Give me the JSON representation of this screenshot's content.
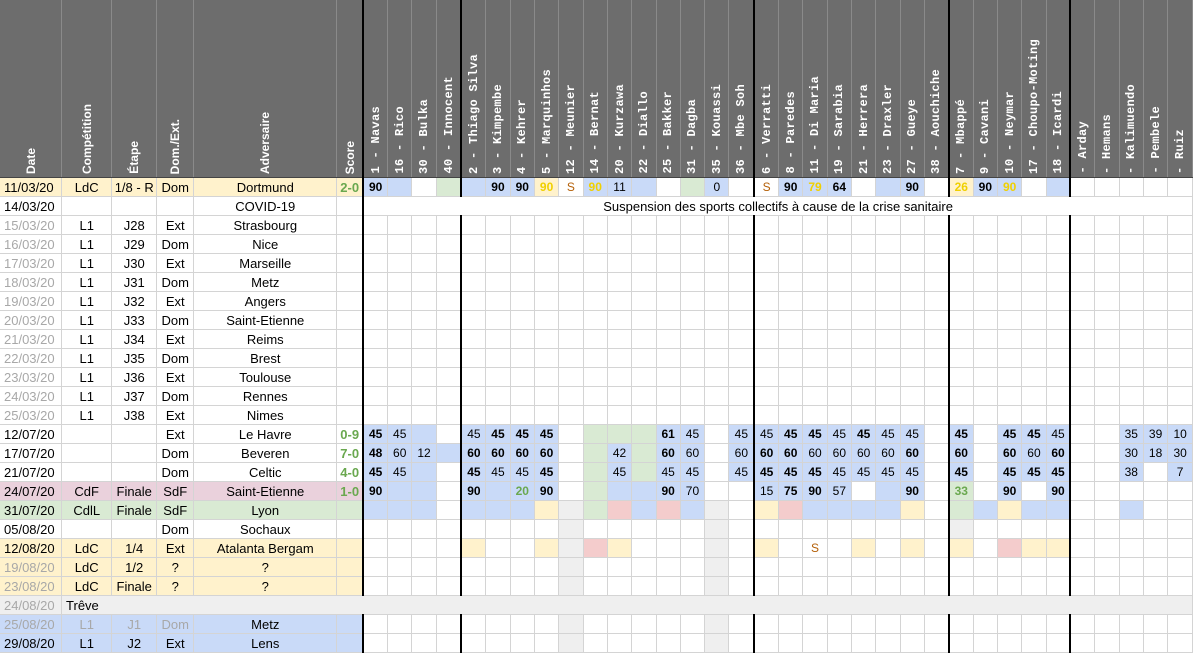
{
  "headers": {
    "date": "Date",
    "competition": "Compétition",
    "etape": "Étape",
    "domext": "Dom./Ext.",
    "adversaire": "Adversaire",
    "score": "Score"
  },
  "players": [
    "1 - Navas",
    "16 - Rico",
    "30 - Bulka",
    "40 - Innocent",
    "2 - Thiago Silva",
    "3 - Kimpembe",
    "4 - Kehrer",
    "5 - Marquinhos",
    "12 - Meunier",
    "14 - Bernat",
    "20 - Kurzawa",
    "22 - Diallo",
    "25 - Bakker",
    "31 - Dagba",
    "35 - Kouassi",
    "36 - Mbe Soh",
    "6 - Verratti",
    "8 - Paredes",
    "11 - Di Maria",
    "19 - Sarabia",
    "21 - Herrera",
    "23 - Draxler",
    "27 - Gueye",
    "38 - Aouchiche",
    "7 - Mbappé",
    "9 - Cavani",
    "10 - Neymar",
    "17 - Choupo-Moting",
    "18 - Icardi",
    "- Arday",
    "- Hemans",
    "- Kalimuendo",
    "- Pembele",
    "- Ruiz"
  ],
  "note": "Suspension des sports collectifs à cause de la crise sanitaire",
  "rows": [
    {
      "date": "11/03/20",
      "comp": "LdC",
      "etape": "1/8 - R",
      "dom": "Dom",
      "adv": "Dortmund",
      "score": "2-0",
      "style": "yellow",
      "cells": [
        {
          "v": "90",
          "c": "cb",
          "b": 1
        },
        {
          "c": "cb"
        },
        {},
        {
          "c": "cg"
        },
        {
          "c": "cb"
        },
        {
          "v": "90",
          "c": "cb",
          "b": 1
        },
        {
          "v": "90",
          "c": "cb",
          "b": 1
        },
        {
          "v": "90",
          "c": "cy",
          "b": 1,
          "t": "ty"
        },
        {
          "v": "S",
          "t": "ts"
        },
        {
          "v": "90",
          "c": "cb",
          "b": 1,
          "t": "ty"
        },
        {
          "v": "11",
          "c": "cb"
        },
        {
          "c": "cb"
        },
        {},
        {
          "c": "cg"
        },
        {
          "v": "0",
          "c": "cb"
        },
        {},
        {
          "v": "S",
          "t": "ts"
        },
        {
          "v": "90",
          "c": "cb",
          "b": 1
        },
        {
          "v": "79",
          "c": "cb",
          "b": 1,
          "t": "ty"
        },
        {
          "v": "64",
          "c": "cb",
          "b": 1
        },
        {},
        {
          "c": "cb"
        },
        {
          "v": "90",
          "c": "cb",
          "b": 1
        },
        {},
        {
          "v": "26",
          "c": "cy",
          "b": 1,
          "t": "ty"
        },
        {
          "v": "90",
          "c": "cb",
          "b": 1
        },
        {
          "v": "90",
          "c": "cb",
          "b": 1,
          "t": "ty"
        },
        {},
        {
          "c": "cb"
        },
        {},
        {},
        {},
        {},
        {}
      ]
    },
    {
      "date": "14/03/20",
      "comp": "",
      "etape": "",
      "dom": "",
      "adv": "COVID-19",
      "score": "",
      "style": "",
      "noteRow": true
    },
    {
      "date": "15/03/20",
      "comp": "L1",
      "etape": "J28",
      "dom": "Ext",
      "adv": "Strasbourg",
      "score": "",
      "style": "",
      "grey": 1
    },
    {
      "date": "16/03/20",
      "comp": "L1",
      "etape": "J29",
      "dom": "Dom",
      "adv": "Nice",
      "score": "",
      "style": "",
      "grey": 1
    },
    {
      "date": "17/03/20",
      "comp": "L1",
      "etape": "J30",
      "dom": "Ext",
      "adv": "Marseille",
      "score": "",
      "style": "",
      "grey": 1
    },
    {
      "date": "18/03/20",
      "comp": "L1",
      "etape": "J31",
      "dom": "Dom",
      "adv": "Metz",
      "score": "",
      "style": "",
      "grey": 1
    },
    {
      "date": "19/03/20",
      "comp": "L1",
      "etape": "J32",
      "dom": "Ext",
      "adv": "Angers",
      "score": "",
      "style": "",
      "grey": 1
    },
    {
      "date": "20/03/20",
      "comp": "L1",
      "etape": "J33",
      "dom": "Dom",
      "adv": "Saint-Etienne",
      "score": "",
      "style": "",
      "grey": 1
    },
    {
      "date": "21/03/20",
      "comp": "L1",
      "etape": "J34",
      "dom": "Ext",
      "adv": "Reims",
      "score": "",
      "style": "",
      "grey": 1
    },
    {
      "date": "22/03/20",
      "comp": "L1",
      "etape": "J35",
      "dom": "Dom",
      "adv": "Brest",
      "score": "",
      "style": "",
      "grey": 1
    },
    {
      "date": "23/03/20",
      "comp": "L1",
      "etape": "J36",
      "dom": "Ext",
      "adv": "Toulouse",
      "score": "",
      "style": "",
      "grey": 1
    },
    {
      "date": "24/03/20",
      "comp": "L1",
      "etape": "J37",
      "dom": "Dom",
      "adv": "Rennes",
      "score": "",
      "style": "",
      "grey": 1
    },
    {
      "date": "25/03/20",
      "comp": "L1",
      "etape": "J38",
      "dom": "Ext",
      "adv": "Nimes",
      "score": "",
      "style": "",
      "grey": 1
    },
    {
      "date": "12/07/20",
      "comp": "",
      "etape": "",
      "dom": "Ext",
      "adv": "Le Havre",
      "score": "0-9",
      "style": "",
      "cells": [
        {
          "v": "45",
          "c": "cb",
          "b": 1
        },
        {
          "v": "45",
          "c": "cb"
        },
        {
          "c": "cb"
        },
        {},
        {
          "v": "45",
          "c": "cb"
        },
        {
          "v": "45",
          "c": "cb",
          "b": 1
        },
        {
          "v": "45",
          "c": "cb",
          "b": 1
        },
        {
          "v": "45",
          "c": "cb",
          "b": 1
        },
        {},
        {
          "c": "cg"
        },
        {
          "c": "cg"
        },
        {
          "c": "cg"
        },
        {
          "v": "61",
          "c": "cb",
          "b": 1
        },
        {
          "v": "45",
          "c": "cb"
        },
        {},
        {
          "v": "45",
          "c": "cb"
        },
        {
          "v": "45",
          "c": "cb"
        },
        {
          "v": "45",
          "c": "cb",
          "b": 1
        },
        {
          "v": "45",
          "c": "cb",
          "b": 1
        },
        {
          "v": "45",
          "c": "cb"
        },
        {
          "v": "45",
          "c": "cb",
          "b": 1
        },
        {
          "v": "45",
          "c": "cb"
        },
        {
          "v": "45",
          "c": "cb"
        },
        {},
        {
          "v": "45",
          "c": "cb",
          "b": 1
        },
        {},
        {
          "v": "45",
          "c": "cb",
          "b": 1
        },
        {
          "v": "45",
          "c": "cb",
          "b": 1
        },
        {
          "v": "45",
          "c": "cb"
        },
        {},
        {},
        {
          "v": "35",
          "c": "cb"
        },
        {
          "v": "39",
          "c": "cb"
        },
        {
          "v": "10",
          "c": "cb"
        }
      ]
    },
    {
      "date": "17/07/20",
      "comp": "",
      "etape": "",
      "dom": "Dom",
      "adv": "Beveren",
      "score": "7-0",
      "style": "",
      "cells": [
        {
          "v": "48",
          "c": "cb",
          "b": 1
        },
        {
          "v": "60",
          "c": "cb"
        },
        {
          "v": "12",
          "c": "cb"
        },
        {
          "c": "cb"
        },
        {
          "v": "60",
          "c": "cb",
          "b": 1
        },
        {
          "v": "60",
          "c": "cb",
          "b": 1
        },
        {
          "v": "60",
          "c": "cb",
          "b": 1
        },
        {
          "v": "60",
          "c": "cb",
          "b": 1
        },
        {},
        {
          "c": "cg"
        },
        {
          "v": "42",
          "c": "cb"
        },
        {
          "c": "cg"
        },
        {
          "v": "60",
          "c": "cb",
          "b": 1
        },
        {
          "v": "60",
          "c": "cb"
        },
        {},
        {
          "v": "60",
          "c": "cb"
        },
        {
          "v": "60",
          "c": "cb",
          "b": 1
        },
        {
          "v": "60",
          "c": "cb",
          "b": 1
        },
        {
          "v": "60",
          "c": "cb"
        },
        {
          "v": "60",
          "c": "cb"
        },
        {
          "v": "60",
          "c": "cb"
        },
        {
          "v": "60",
          "c": "cb"
        },
        {
          "v": "60",
          "c": "cb",
          "b": 1
        },
        {},
        {
          "v": "60",
          "c": "cb",
          "b": 1
        },
        {},
        {
          "v": "60",
          "c": "cb",
          "b": 1
        },
        {
          "v": "60",
          "c": "cb"
        },
        {
          "v": "60",
          "c": "cb",
          "b": 1
        },
        {},
        {},
        {
          "v": "30",
          "c": "cb"
        },
        {
          "v": "18",
          "c": "cb"
        },
        {
          "v": "30",
          "c": "cb"
        }
      ]
    },
    {
      "date": "21/07/20",
      "comp": "",
      "etape": "",
      "dom": "Dom",
      "adv": "Celtic",
      "score": "4-0",
      "style": "",
      "cells": [
        {
          "v": "45",
          "c": "cb",
          "b": 1
        },
        {
          "v": "45",
          "c": "cb"
        },
        {
          "c": "cb"
        },
        {},
        {
          "v": "45",
          "c": "cb",
          "b": 1
        },
        {
          "v": "45",
          "c": "cb"
        },
        {
          "v": "45",
          "c": "cb"
        },
        {
          "v": "45",
          "c": "cb",
          "b": 1
        },
        {},
        {
          "c": "cg"
        },
        {
          "v": "45",
          "c": "cb"
        },
        {
          "c": "cg"
        },
        {
          "v": "45",
          "c": "cb"
        },
        {
          "v": "45",
          "c": "cb"
        },
        {},
        {
          "v": "45",
          "c": "cb"
        },
        {
          "v": "45",
          "c": "cb",
          "b": 1
        },
        {
          "v": "45",
          "c": "cb",
          "b": 1
        },
        {
          "v": "45",
          "c": "cb",
          "b": 1
        },
        {
          "v": "45",
          "c": "cb"
        },
        {
          "v": "45",
          "c": "cb"
        },
        {
          "v": "45",
          "c": "cb"
        },
        {
          "v": "45",
          "c": "cb"
        },
        {},
        {
          "v": "45",
          "c": "cb",
          "b": 1
        },
        {},
        {
          "v": "45",
          "c": "cb",
          "b": 1
        },
        {
          "v": "45",
          "c": "cb",
          "b": 1
        },
        {
          "v": "45",
          "c": "cb",
          "b": 1
        },
        {},
        {},
        {
          "v": "38",
          "c": "cb"
        },
        {},
        {
          "v": "7",
          "c": "cb"
        }
      ]
    },
    {
      "date": "24/07/20",
      "comp": "CdF",
      "etape": "Finale",
      "dom": "SdF",
      "adv": "Saint-Etienne",
      "score": "1-0",
      "style": "pink",
      "cells": [
        {
          "v": "90",
          "c": "cb",
          "b": 1
        },
        {
          "c": "cb"
        },
        {
          "c": "cb"
        },
        {},
        {
          "v": "90",
          "c": "cb",
          "b": 1
        },
        {
          "c": "cb"
        },
        {
          "v": "20",
          "c": "cb",
          "b": 1,
          "t": "tg"
        },
        {
          "v": "90",
          "c": "cb",
          "b": 1
        },
        {},
        {
          "c": "cg"
        },
        {
          "c": "cb"
        },
        {
          "c": "cb"
        },
        {
          "v": "90",
          "c": "cb",
          "b": 1
        },
        {
          "v": "70",
          "c": "cb"
        },
        {},
        {},
        {
          "v": "15",
          "c": "cb"
        },
        {
          "v": "75",
          "c": "cb",
          "b": 1
        },
        {
          "v": "90",
          "c": "cb",
          "b": 1
        },
        {
          "v": "57",
          "c": "cb"
        },
        {},
        {
          "c": "cb"
        },
        {
          "v": "90",
          "c": "cb",
          "b": 1
        },
        {},
        {
          "v": "33",
          "c": "cg",
          "b": 1,
          "t": "tg"
        },
        {},
        {
          "v": "90",
          "c": "cb",
          "b": 1
        },
        {},
        {
          "v": "90",
          "c": "cb",
          "b": 1
        },
        {},
        {},
        {},
        {},
        {}
      ]
    },
    {
      "date": "31/07/20",
      "comp": "CdlL",
      "etape": "Finale",
      "dom": "SdF",
      "adv": "Lyon",
      "score": "",
      "style": "green",
      "cells": [
        {
          "c": "cb"
        },
        {
          "c": "cb"
        },
        {
          "c": "cb"
        },
        {},
        {
          "c": "cb"
        },
        {
          "c": "cb"
        },
        {
          "c": "cb"
        },
        {
          "c": "cy"
        },
        {
          "c": "cgr"
        },
        {
          "c": "cg"
        },
        {
          "c": "cp"
        },
        {
          "c": "cb"
        },
        {
          "c": "cp"
        },
        {
          "c": "cb"
        },
        {
          "c": "cgr"
        },
        {},
        {
          "c": "cy"
        },
        {
          "c": "cp"
        },
        {
          "c": "cb"
        },
        {
          "c": "cb"
        },
        {
          "c": "cb"
        },
        {
          "c": "cb"
        },
        {
          "c": "cy"
        },
        {},
        {
          "c": "cg"
        },
        {
          "c": "cb"
        },
        {
          "c": "cy"
        },
        {
          "c": "cb"
        },
        {
          "c": "cb"
        },
        {},
        {},
        {
          "c": "cb"
        },
        {},
        {}
      ]
    },
    {
      "date": "05/08/20",
      "comp": "",
      "etape": "",
      "dom": "Dom",
      "adv": "Sochaux",
      "score": "",
      "style": "",
      "cells": [
        {},
        {},
        {},
        {},
        {},
        {},
        {},
        {},
        {
          "c": "cgr"
        },
        {},
        {},
        {},
        {},
        {},
        {
          "c": "cgr"
        },
        {},
        {},
        {},
        {},
        {},
        {},
        {},
        {},
        {},
        {
          "c": "cgr"
        },
        {},
        {},
        {},
        {},
        {},
        {},
        {},
        {},
        {}
      ]
    },
    {
      "date": "12/08/20",
      "comp": "LdC",
      "etape": "1/4",
      "dom": "Ext",
      "adv": "Atalanta Bergam",
      "score": "",
      "style": "yellow",
      "cells": [
        {},
        {},
        {},
        {},
        {
          "c": "cy"
        },
        {},
        {},
        {
          "c": "cy"
        },
        {
          "c": "cgr"
        },
        {
          "c": "cp"
        },
        {
          "c": "cy"
        },
        {},
        {},
        {},
        {
          "c": "cgr"
        },
        {},
        {
          "c": "cy"
        },
        {},
        {
          "v": "S",
          "t": "ts"
        },
        {},
        {
          "c": "cy"
        },
        {},
        {
          "c": "cy"
        },
        {},
        {
          "c": "cy"
        },
        {},
        {
          "c": "cp"
        },
        {
          "c": "cy"
        },
        {
          "c": "cy"
        },
        {},
        {},
        {},
        {},
        {}
      ]
    },
    {
      "date": "19/08/20",
      "comp": "LdC",
      "etape": "1/2",
      "dom": "?",
      "adv": "?",
      "score": "",
      "style": "yellow",
      "grey": 1,
      "cells": [
        {},
        {},
        {},
        {},
        {},
        {},
        {},
        {},
        {
          "c": "cgr"
        },
        {},
        {},
        {},
        {},
        {},
        {
          "c": "cgr"
        },
        {},
        {},
        {},
        {},
        {},
        {},
        {},
        {},
        {},
        {},
        {},
        {},
        {},
        {},
        {},
        {},
        {},
        {},
        {}
      ]
    },
    {
      "date": "23/08/20",
      "comp": "LdC",
      "etape": "Finale",
      "dom": "?",
      "adv": "?",
      "score": "",
      "style": "yellow",
      "grey": 1,
      "cells": [
        {},
        {},
        {},
        {},
        {},
        {},
        {},
        {},
        {
          "c": "cgr"
        },
        {},
        {},
        {},
        {},
        {},
        {
          "c": "cgr"
        },
        {},
        {},
        {},
        {},
        {},
        {},
        {},
        {},
        {},
        {},
        {},
        {},
        {},
        {},
        {},
        {},
        {},
        {},
        {}
      ]
    },
    {
      "date": "24/08/20",
      "comp": "Trêve",
      "etape": "",
      "dom": "",
      "adv": "",
      "score": "",
      "style": "grey",
      "treve": true
    },
    {
      "date": "25/08/20",
      "comp": "L1",
      "etape": "J1",
      "dom": "Dom",
      "adv": "Metz",
      "score": "",
      "style": "blue",
      "grey": 1,
      "cells": [
        {},
        {},
        {},
        {},
        {},
        {},
        {},
        {},
        {
          "c": "cgr"
        },
        {},
        {},
        {},
        {},
        {},
        {
          "c": "cgr"
        },
        {},
        {},
        {},
        {},
        {},
        {},
        {},
        {},
        {},
        {},
        {},
        {},
        {},
        {},
        {},
        {},
        {},
        {},
        {}
      ]
    },
    {
      "date": "29/08/20",
      "comp": "L1",
      "etape": "J2",
      "dom": "Ext",
      "adv": "Lens",
      "score": "",
      "style": "blue",
      "cells": [
        {},
        {},
        {},
        {},
        {},
        {},
        {},
        {},
        {
          "c": "cgr"
        },
        {},
        {},
        {},
        {},
        {},
        {
          "c": "cgr"
        },
        {},
        {},
        {},
        {},
        {},
        {},
        {},
        {},
        {},
        {},
        {},
        {},
        {},
        {},
        {},
        {},
        {},
        {},
        {}
      ]
    }
  ]
}
